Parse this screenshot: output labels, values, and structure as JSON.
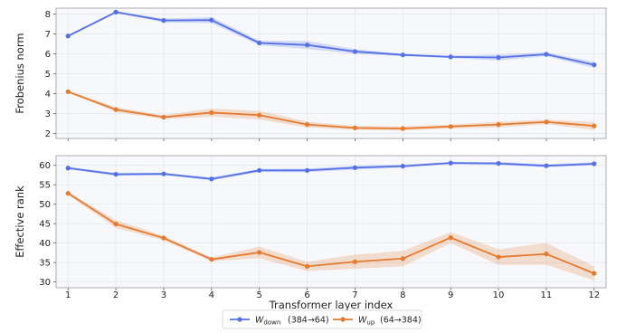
{
  "chart_data": {
    "type": "line",
    "x": [
      1,
      2,
      3,
      4,
      5,
      6,
      7,
      8,
      9,
      10,
      11,
      12
    ],
    "xlabel": "Transformer layer index",
    "xticks": [
      "1",
      "2",
      "3",
      "4",
      "5",
      "6",
      "7",
      "8",
      "9",
      "10",
      "11",
      "12"
    ],
    "grid": true,
    "legend_position": "bottom-center",
    "legend": [
      {
        "main": "W",
        "sub": "down",
        "suffix": "(384→64)",
        "color": "#5470e6"
      },
      {
        "main": "W",
        "sub": "up",
        "suffix": "(64→384)",
        "color": "#e57a2e"
      }
    ],
    "panels": [
      {
        "ylabel": "Frobenius norm",
        "ylim": [
          1.75,
          8.3
        ],
        "yticks": [
          "2",
          "3",
          "4",
          "5",
          "6",
          "7",
          "8"
        ],
        "yticks_values": [
          2,
          3,
          4,
          5,
          6,
          7,
          8
        ],
        "series": [
          {
            "values": [
              6.9,
              8.1,
              7.68,
              7.7,
              6.55,
              6.45,
              6.12,
              5.95,
              5.85,
              5.82,
              5.98,
              5.45
            ],
            "band": [
              0.05,
              0.05,
              0.1,
              0.15,
              0.12,
              0.2,
              0.12,
              0.06,
              0.06,
              0.15,
              0.1,
              0.15
            ],
            "color": "#5470e6"
          },
          {
            "values": [
              4.1,
              3.2,
              2.82,
              3.05,
              2.92,
              2.45,
              2.28,
              2.25,
              2.35,
              2.45,
              2.58,
              2.38
            ],
            "band": [
              0.05,
              0.12,
              0.1,
              0.2,
              0.22,
              0.15,
              0.1,
              0.1,
              0.1,
              0.15,
              0.12,
              0.2
            ],
            "color": "#e57a2e"
          }
        ]
      },
      {
        "ylabel": "Effective rank",
        "ylim": [
          28.5,
          62.5
        ],
        "yticks": [
          "30",
          "35",
          "40",
          "45",
          "50",
          "55",
          "60"
        ],
        "yticks_values": [
          30,
          35,
          40,
          45,
          50,
          55,
          60
        ],
        "series": [
          {
            "values": [
              59.3,
              57.7,
              57.8,
              56.5,
              58.7,
              58.7,
              59.4,
              59.8,
              60.6,
              60.5,
              59.9,
              60.4
            ],
            "band": [
              0.3,
              0.4,
              0.3,
              0.4,
              0.4,
              0.5,
              0.5,
              0.4,
              0.3,
              0.4,
              0.4,
              0.4
            ],
            "color": "#5470e6"
          },
          {
            "values": [
              52.8,
              44.9,
              41.3,
              35.8,
              37.6,
              34.0,
              35.2,
              36.0,
              41.4,
              36.4,
              37.2,
              32.2
            ],
            "band": [
              0.4,
              1.0,
              0.6,
              0.5,
              1.5,
              1.2,
              1.8,
              2.0,
              1.4,
              2.0,
              2.8,
              1.8
            ],
            "color": "#e57a2e"
          }
        ]
      }
    ]
  }
}
